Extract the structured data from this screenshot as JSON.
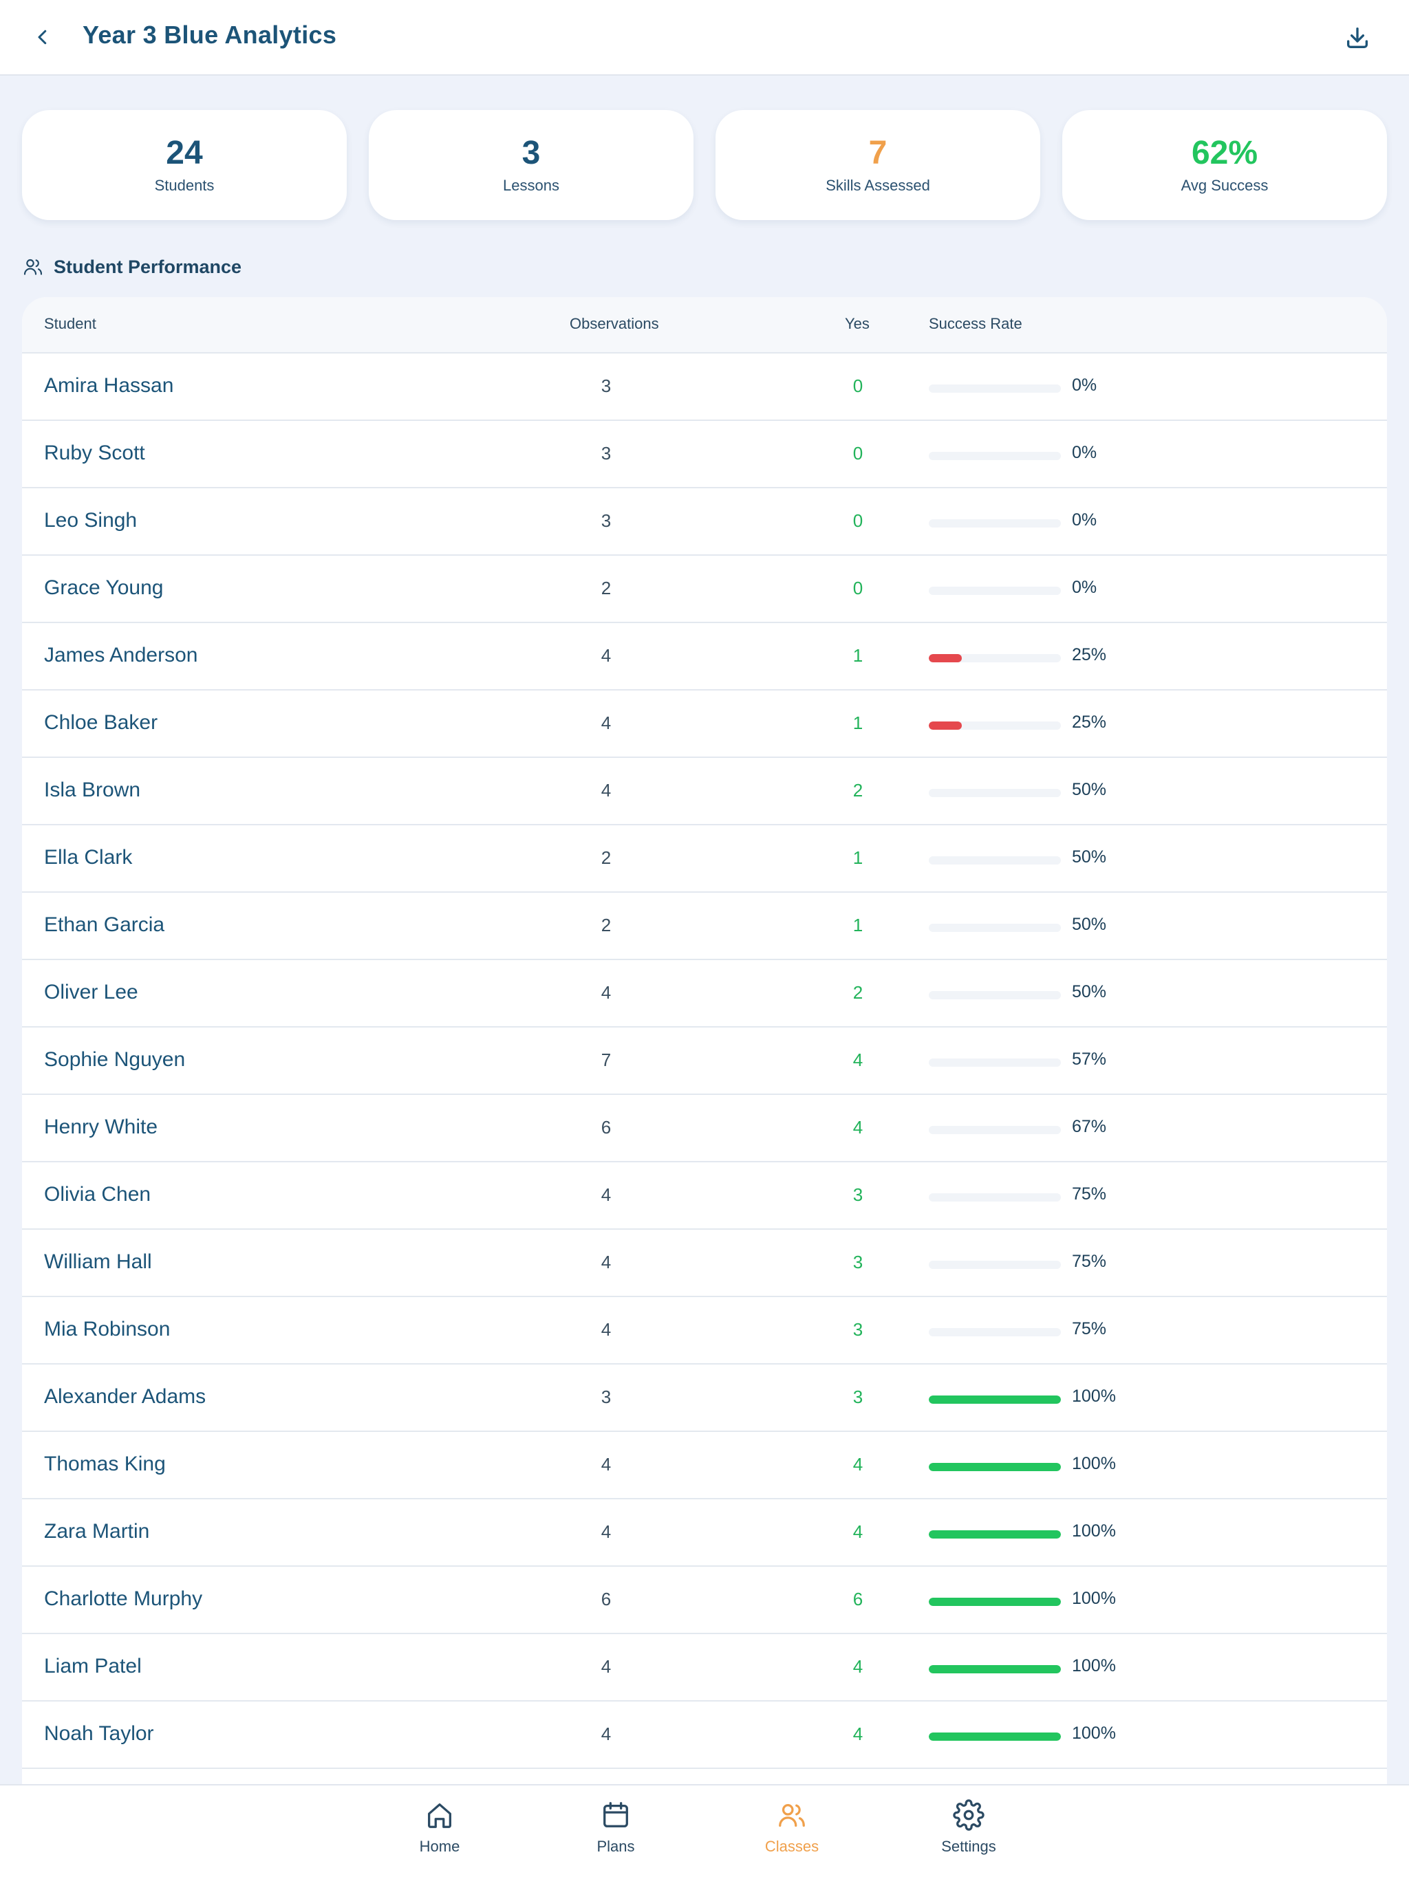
{
  "header": {
    "title": "Year 3 Blue Analytics"
  },
  "stats": [
    {
      "value": "24",
      "label": "Students",
      "color": "#1c5478"
    },
    {
      "value": "3",
      "label": "Lessons",
      "color": "#1c5478"
    },
    {
      "value": "7",
      "label": "Skills Assessed",
      "color": "#f0a04b"
    },
    {
      "value": "62%",
      "label": "Avg Success",
      "color": "#22c55e"
    }
  ],
  "section": {
    "title": "Student Performance"
  },
  "table": {
    "headers": {
      "student": "Student",
      "observations": "Observations",
      "yes": "Yes",
      "rate": "Success Rate"
    },
    "rows": [
      {
        "name": "Amira Hassan",
        "obs": "3",
        "yes": "0",
        "rate": "0%",
        "pct": 0
      },
      {
        "name": "Ruby Scott",
        "obs": "3",
        "yes": "0",
        "rate": "0%",
        "pct": 0
      },
      {
        "name": "Leo Singh",
        "obs": "3",
        "yes": "0",
        "rate": "0%",
        "pct": 0
      },
      {
        "name": "Grace Young",
        "obs": "2",
        "yes": "0",
        "rate": "0%",
        "pct": 0
      },
      {
        "name": "James Anderson",
        "obs": "4",
        "yes": "1",
        "rate": "25%",
        "pct": 25,
        "bar_color": "#e5484d"
      },
      {
        "name": "Chloe Baker",
        "obs": "4",
        "yes": "1",
        "rate": "25%",
        "pct": 25,
        "bar_color": "#e5484d"
      },
      {
        "name": "Isla Brown",
        "obs": "4",
        "yes": "2",
        "rate": "50%",
        "pct": 50,
        "bar_color": "#f1f4f8"
      },
      {
        "name": "Ella Clark",
        "obs": "2",
        "yes": "1",
        "rate": "50%",
        "pct": 50,
        "bar_color": "#f1f4f8"
      },
      {
        "name": "Ethan Garcia",
        "obs": "2",
        "yes": "1",
        "rate": "50%",
        "pct": 50,
        "bar_color": "#f1f4f8"
      },
      {
        "name": "Oliver Lee",
        "obs": "4",
        "yes": "2",
        "rate": "50%",
        "pct": 50,
        "bar_color": "#f1f4f8"
      },
      {
        "name": "Sophie Nguyen",
        "obs": "7",
        "yes": "4",
        "rate": "57%",
        "pct": 57,
        "bar_color": "#f1f4f8"
      },
      {
        "name": "Henry White",
        "obs": "6",
        "yes": "4",
        "rate": "67%",
        "pct": 67,
        "bar_color": "#f1f4f8"
      },
      {
        "name": "Olivia Chen",
        "obs": "4",
        "yes": "3",
        "rate": "75%",
        "pct": 75,
        "bar_color": "#f1f4f8"
      },
      {
        "name": "William Hall",
        "obs": "4",
        "yes": "3",
        "rate": "75%",
        "pct": 75,
        "bar_color": "#f1f4f8"
      },
      {
        "name": "Mia Robinson",
        "obs": "4",
        "yes": "3",
        "rate": "75%",
        "pct": 75,
        "bar_color": "#f1f4f8"
      },
      {
        "name": "Alexander Adams",
        "obs": "3",
        "yes": "3",
        "rate": "100%",
        "pct": 100,
        "bar_color": "#22c55e"
      },
      {
        "name": "Thomas King",
        "obs": "4",
        "yes": "4",
        "rate": "100%",
        "pct": 100,
        "bar_color": "#22c55e"
      },
      {
        "name": "Zara Martin",
        "obs": "4",
        "yes": "4",
        "rate": "100%",
        "pct": 100,
        "bar_color": "#22c55e"
      },
      {
        "name": "Charlotte Murphy",
        "obs": "6",
        "yes": "6",
        "rate": "100%",
        "pct": 100,
        "bar_color": "#22c55e"
      },
      {
        "name": "Liam Patel",
        "obs": "4",
        "yes": "4",
        "rate": "100%",
        "pct": 100,
        "bar_color": "#22c55e"
      },
      {
        "name": "Noah Taylor",
        "obs": "4",
        "yes": "4",
        "rate": "100%",
        "pct": 100,
        "bar_color": "#22c55e"
      },
      {
        "name": "",
        "obs": "",
        "yes": "",
        "rate": "",
        "pct": 0
      }
    ]
  },
  "nav": {
    "active": "classes",
    "active_color": "#f0a04b",
    "items": [
      {
        "id": "home",
        "label": "Home",
        "icon": "home-icon"
      },
      {
        "id": "plans",
        "label": "Plans",
        "icon": "calendar-icon"
      },
      {
        "id": "classes",
        "label": "Classes",
        "icon": "users-icon"
      },
      {
        "id": "settings",
        "label": "Settings",
        "icon": "gear-icon"
      }
    ]
  }
}
